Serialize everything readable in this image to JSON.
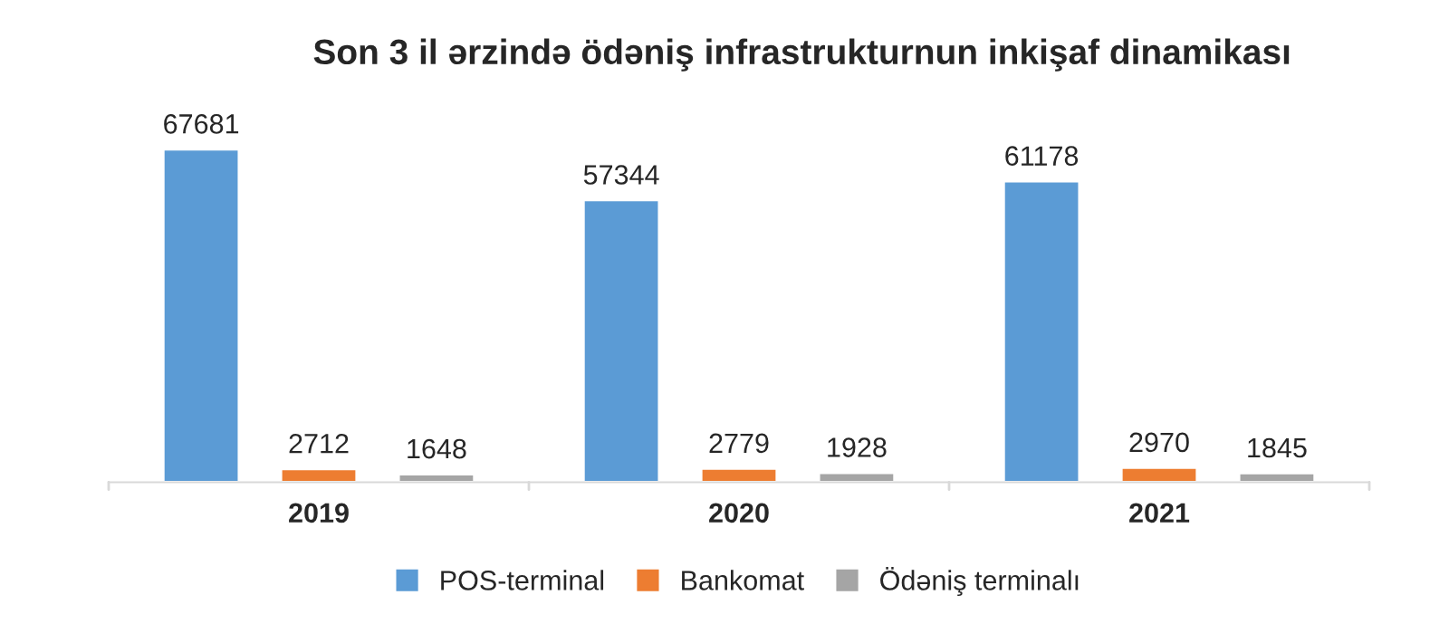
{
  "chart_data": {
    "type": "bar",
    "title": "Son 3 il ərzində ödəniş infrastrukturnun inkişaf dinamikası",
    "categories": [
      "2019",
      "2020",
      "2021"
    ],
    "series": [
      {
        "name": "POS-terminal",
        "color": "#5b9bd5",
        "values": [
          67681,
          57344,
          61178
        ]
      },
      {
        "name": "Bankomat",
        "color": "#ed7d31",
        "values": [
          2712,
          2779,
          2970
        ]
      },
      {
        "name": "Ödəniş terminalı",
        "color": "#a5a5a5",
        "values": [
          1648,
          1928,
          1845
        ]
      }
    ],
    "data_labels": true,
    "legend": "bottom",
    "tick_labels": "x"
  }
}
